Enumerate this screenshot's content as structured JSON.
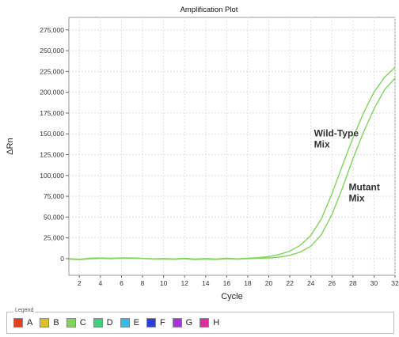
{
  "chart_data": {
    "type": "line",
    "title": "Amplification Plot",
    "xlabel": "Cycle",
    "ylabel": "ΔRn",
    "xlim": [
      1,
      32
    ],
    "ylim": [
      -20000,
      290000
    ],
    "x_ticks": [
      2,
      4,
      6,
      8,
      10,
      12,
      14,
      16,
      18,
      20,
      22,
      24,
      26,
      28,
      30,
      32
    ],
    "y_ticks": [
      0,
      25000,
      50000,
      75000,
      100000,
      125000,
      150000,
      175000,
      200000,
      225000,
      250000,
      275000
    ],
    "y_tick_labels": [
      "0",
      "25,000",
      "50,000",
      "75,000",
      "100,000",
      "125,000",
      "150,000",
      "175,000",
      "200,000",
      "225,000",
      "250,000",
      "275,000"
    ],
    "grid": true,
    "series_color": "#7fd65a",
    "series": [
      {
        "name": "Wild-Type Mix",
        "x": [
          1,
          2,
          3,
          4,
          5,
          6,
          7,
          8,
          9,
          10,
          11,
          12,
          13,
          14,
          15,
          16,
          17,
          18,
          19,
          20,
          21,
          22,
          23,
          24,
          25,
          26,
          27,
          28,
          29,
          30,
          31,
          32
        ],
        "y": [
          0,
          -800,
          600,
          800,
          400,
          1000,
          800,
          500,
          -200,
          200,
          -300,
          400,
          -500,
          300,
          -400,
          600,
          -200,
          500,
          1200,
          2500,
          5000,
          9000,
          16000,
          28000,
          48000,
          78000,
          112000,
          145000,
          175000,
          200000,
          218000,
          230000
        ]
      },
      {
        "name": "Mutant Mix",
        "x": [
          1,
          2,
          3,
          4,
          5,
          6,
          7,
          8,
          9,
          10,
          11,
          12,
          13,
          14,
          15,
          16,
          17,
          18,
          19,
          20,
          21,
          22,
          23,
          24,
          25,
          26,
          27,
          28,
          29,
          30,
          31,
          32
        ],
        "y": [
          -500,
          -1200,
          -200,
          300,
          0,
          600,
          400,
          200,
          -600,
          -400,
          -800,
          -200,
          -1000,
          -500,
          -900,
          0,
          -700,
          0,
          300,
          900,
          1800,
          4000,
          8000,
          15000,
          29000,
          53000,
          85000,
          120000,
          152000,
          180000,
          203000,
          217000
        ]
      }
    ],
    "annotations": [
      {
        "lines": [
          "Wild-Type",
          "Mix"
        ],
        "x": 24.3,
        "y": 147000
      },
      {
        "lines": [
          "Mutant",
          "Mix"
        ],
        "x": 27.6,
        "y": 82000
      }
    ],
    "legend": {
      "title": "Legend",
      "items": [
        {
          "label": "A",
          "color": "#e0401c"
        },
        {
          "label": "B",
          "color": "#d8c22a"
        },
        {
          "label": "C",
          "color": "#7fd65a"
        },
        {
          "label": "D",
          "color": "#3fcf7a"
        },
        {
          "label": "E",
          "color": "#3ab8e0"
        },
        {
          "label": "F",
          "color": "#2a3fd8"
        },
        {
          "label": "G",
          "color": "#a535d6"
        },
        {
          "label": "H",
          "color": "#d8329a"
        }
      ]
    }
  }
}
